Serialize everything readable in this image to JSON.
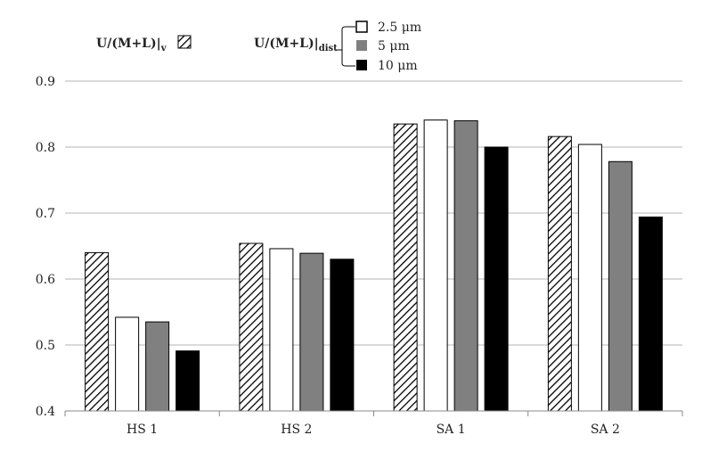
{
  "chart_data": {
    "type": "bar",
    "categories": [
      "HS 1",
      "HS 2",
      "SA 1",
      "SA 2"
    ],
    "ylim": [
      0.4,
      0.9
    ],
    "yticks": [
      "0.4",
      "0.5",
      "0.6",
      "0.7",
      "0.8",
      "0.9"
    ],
    "grid": true,
    "series": [
      {
        "name": "U/(M+L)|v",
        "values": [
          0.64,
          0.654,
          0.835,
          0.816
        ],
        "fill": "hatch"
      },
      {
        "name": "2.5 μm",
        "values": [
          0.542,
          0.646,
          0.841,
          0.804
        ],
        "fill": "#ffffff"
      },
      {
        "name": "5 μm",
        "values": [
          0.535,
          0.639,
          0.84,
          0.778
        ],
        "fill": "#808080"
      },
      {
        "name": "10 μm",
        "values": [
          0.491,
          0.63,
          0.8,
          0.694
        ],
        "fill": "#000000"
      }
    ],
    "legend": {
      "v_label_main": "U/(M+L)|",
      "v_label_sub": "v",
      "dist_label_main": "U/(M+L)|",
      "dist_label_sub": "dist",
      "dist_items": [
        "2.5 μm",
        "5 μm",
        "10 μm"
      ],
      "placement": "top-left"
    }
  }
}
